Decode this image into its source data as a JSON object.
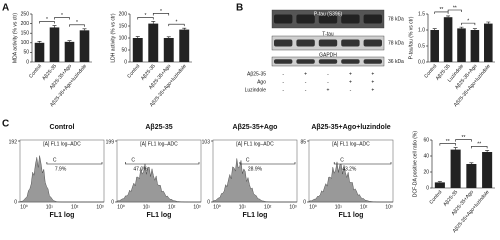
{
  "panels": [
    "A",
    "B",
    "C"
  ],
  "chart_data": [
    {
      "type": "bar",
      "ylabel": "MDA activity (% vs ctr)",
      "categories": [
        "Control",
        "Aβ25-35",
        "Aβ25-35+Ago",
        "Aβ25-35+Ago+luzindole"
      ],
      "values": [
        100,
        180,
        105,
        165
      ],
      "errors": [
        8,
        10,
        6,
        8
      ],
      "ylim": [
        0,
        250
      ],
      "yticks": [
        0,
        50,
        100,
        150,
        200,
        250
      ],
      "color": "#222222",
      "significance": [
        "*",
        "*",
        "*"
      ]
    },
    {
      "type": "bar",
      "ylabel": "LDH activity (% vs ctr)",
      "categories": [
        "Control",
        "Aβ25-35",
        "Aβ25-35+Ago",
        "Aβ25-35+Ago+luzindole"
      ],
      "values": [
        100,
        160,
        100,
        135
      ],
      "errors": [
        6,
        9,
        5,
        6
      ],
      "ylim": [
        0,
        200
      ],
      "yticks": [
        0,
        50,
        100,
        150,
        200
      ],
      "color": "#222222",
      "significance": [
        "*",
        "*",
        "*"
      ]
    },
    {
      "type": "bar",
      "ylabel": "P-tau/tau (% vs ctr)",
      "categories": [
        "Control",
        "Aβ25-35",
        "Luzindole",
        "Aβ25-35+Ago",
        "Aβ25-35+Ago+luzindole"
      ],
      "values": [
        1.0,
        1.4,
        1.05,
        1.0,
        1.2
      ],
      "errors": [
        0.04,
        0.04,
        0.04,
        0.04,
        0.05
      ],
      "ylim": [
        0,
        1.5
      ],
      "yticks": [
        {
          "value": 0,
          "label": "0.0"
        },
        0.5,
        {
          "value": 1,
          "label": "1.0"
        },
        1.5
      ],
      "color": "#222222",
      "significance": [
        "**",
        "**",
        "*"
      ]
    },
    {
      "type": "bar",
      "ylabel": "DCF-DA positive cell ratio (%)",
      "categories": [
        "Control",
        "Aβ25-35",
        "Aβ25-35+Ago",
        "Aβ25-35+Ago+luzindole"
      ],
      "values": [
        7,
        48,
        30,
        45
      ],
      "errors": [
        1,
        2.5,
        1.5,
        2
      ],
      "ylim": [
        0,
        60
      ],
      "yticks": [
        0,
        20,
        40,
        60
      ],
      "color": "#222222",
      "significance": [
        "**",
        "**",
        "**"
      ]
    }
  ],
  "blot": {
    "rows": [
      "P-tau (S396)",
      "T-tau",
      "GAPDH"
    ],
    "kda": [
      "78 kDa",
      "78 kDa",
      "36 kDa"
    ],
    "treatments": [
      {
        "name": "Aβ25-35",
        "signs": [
          "-",
          "+",
          "-",
          "+",
          "+"
        ]
      },
      {
        "name": "Ago",
        "signs": [
          "-",
          "-",
          "-",
          "+",
          "+"
        ]
      },
      {
        "name": "Luzindole",
        "signs": [
          "-",
          "-",
          "+",
          "-",
          "+"
        ]
      }
    ]
  },
  "flow": [
    {
      "title": "Control",
      "header": "[A] FL1 log–ADC",
      "gate": "C",
      "percent": "7.9%",
      "ymax": 192,
      "ymin": 0,
      "xlabel": "FL1 log",
      "xticks": [
        "10⁰",
        "10¹",
        "10²",
        "10³"
      ]
    },
    {
      "title": "Aβ25-35",
      "header": "[A] FL1 log–ADC",
      "gate": "C",
      "percent": "47.0%",
      "ymax": 199,
      "ymin": 0,
      "xlabel": "FL1 log",
      "xticks": [
        "10⁰",
        "10¹",
        "10²",
        "10³"
      ]
    },
    {
      "title": "Aβ25-35+Ago",
      "header": "[A] FL1 log–ADC",
      "gate": "C",
      "percent": "28.9%",
      "ymax": 103,
      "ymin": 0,
      "xlabel": "FL1 log",
      "xticks": [
        "10⁰",
        "10¹",
        "10²",
        "10³"
      ]
    },
    {
      "title": "Aβ25-35+Ago+luzindole",
      "header": "[A] FL1 log–ADC",
      "gate": "C",
      "percent": "43.2%",
      "ymax": 85,
      "ymin": 0,
      "xlabel": "FL1 log",
      "xticks": [
        "10⁰",
        "10¹",
        "10²",
        "10³"
      ]
    }
  ]
}
